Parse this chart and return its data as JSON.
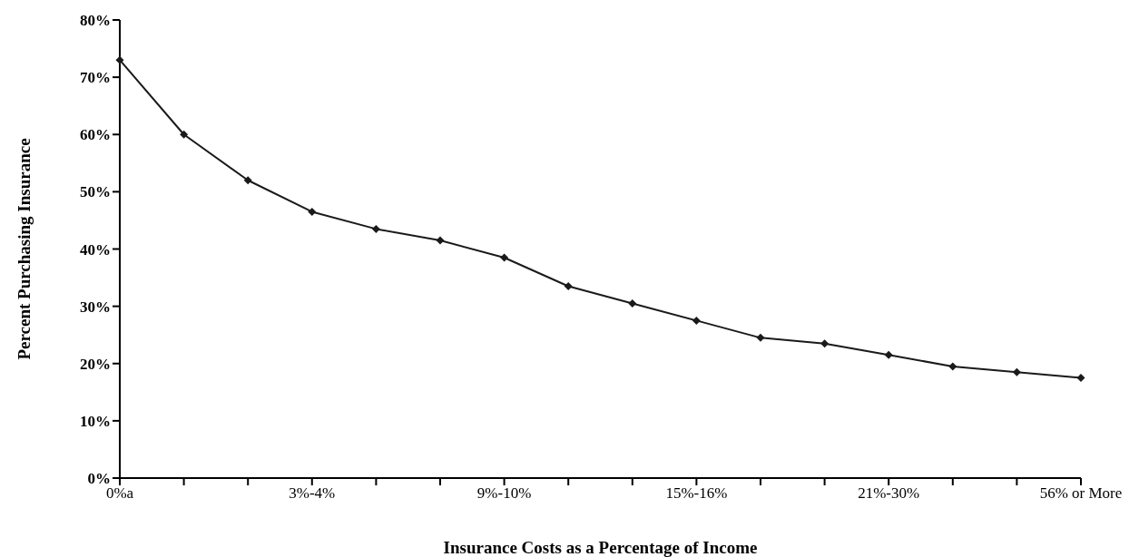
{
  "chart_data": {
    "type": "line",
    "xlabel": "Insurance Costs as a Percentage of Income",
    "ylabel": "Percent Purchasing Insurance",
    "categories": [
      "0%a",
      null,
      null,
      "3%-4%",
      null,
      null,
      "9%-10%",
      null,
      null,
      "15%-16%",
      null,
      null,
      "21%-30%",
      null,
      null,
      "56% or More"
    ],
    "series": [
      {
        "color": "#1a1a1a",
        "values": [
          73,
          60,
          52,
          46.5,
          43.5,
          41.5,
          38.5,
          33.5,
          30.5,
          27.5,
          24.5,
          23.5,
          21.5,
          19.5,
          18.5,
          17.5
        ]
      }
    ],
    "ylim": [
      0,
      80
    ],
    "yticks": [
      {
        "value": 0,
        "label": "0%"
      },
      {
        "value": 10,
        "label": "10%"
      },
      {
        "value": 20,
        "label": "20%"
      },
      {
        "value": 30,
        "label": "30%"
      },
      {
        "value": 40,
        "label": "40%"
      },
      {
        "value": 50,
        "label": "50%"
      },
      {
        "value": 60,
        "label": "60%"
      },
      {
        "value": 70,
        "label": "70%"
      },
      {
        "value": 80,
        "label": "80%"
      }
    ],
    "grid": false,
    "legend": false,
    "marker": "diamond",
    "line_style": "solid"
  }
}
